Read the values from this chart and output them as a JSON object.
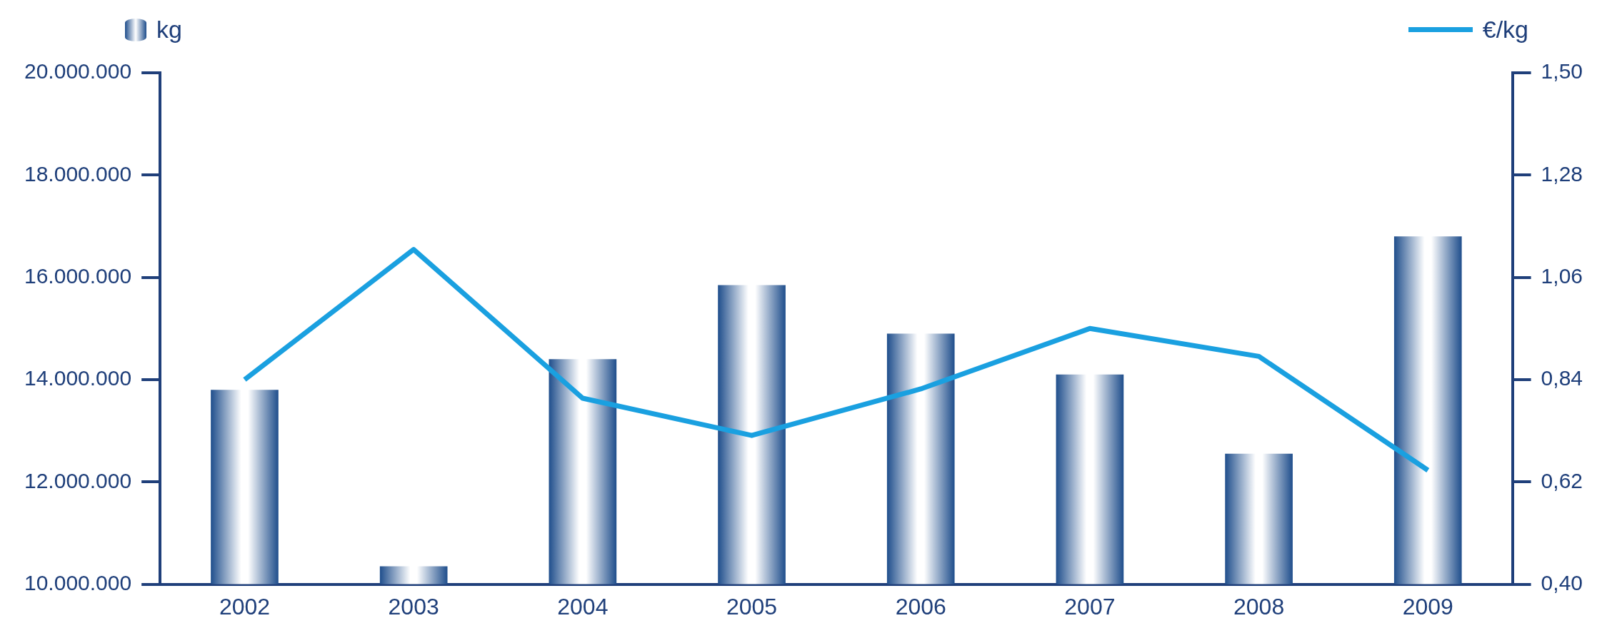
{
  "chart_data": {
    "type": "bar",
    "categories": [
      "2002",
      "2003",
      "2004",
      "2005",
      "2006",
      "2007",
      "2008",
      "2009"
    ],
    "series": [
      {
        "name": "kg",
        "color": "#1f4e8c",
        "values": [
          13800000,
          10350000,
          14400000,
          15850000,
          14900000,
          14100000,
          12550000,
          16800000
        ]
      },
      {
        "name": "€/kg",
        "type": "line",
        "axis": "y2",
        "color": "#1aa0e0",
        "values": [
          0.84,
          1.12,
          0.8,
          0.72,
          0.82,
          0.95,
          0.89,
          0.645
        ]
      }
    ],
    "ylim": [
      10000000,
      20000000
    ],
    "yticks": [
      {
        "value": 10000000,
        "label": "10.000.000"
      },
      {
        "value": 12000000,
        "label": "12.000.000"
      },
      {
        "value": 14000000,
        "label": "14.000.000"
      },
      {
        "value": 16000000,
        "label": "16.000.000"
      },
      {
        "value": 18000000,
        "label": "18.000.000"
      },
      {
        "value": 20000000,
        "label": "20.000.000"
      }
    ],
    "y2lim": [
      0.4,
      1.5
    ],
    "y2ticks": [
      {
        "value": 0.4,
        "label": "0,40"
      },
      {
        "value": 0.62,
        "label": "0,62"
      },
      {
        "value": 0.84,
        "label": "0,84"
      },
      {
        "value": 1.06,
        "label": "1,06"
      },
      {
        "value": 1.28,
        "label": "1,28"
      },
      {
        "value": 1.5,
        "label": "1,50"
      }
    ],
    "grid": false,
    "legend": "top",
    "marker": "none",
    "line_style": "solid"
  }
}
